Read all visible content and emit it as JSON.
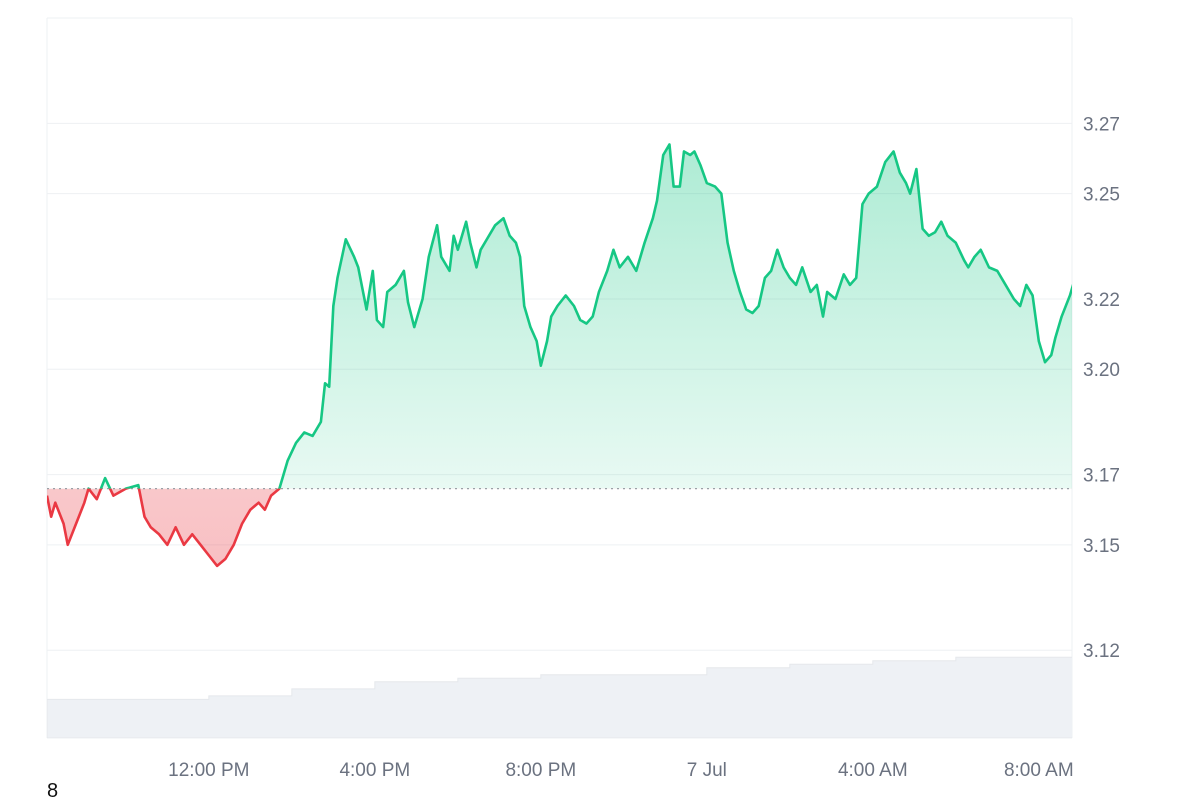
{
  "chart_data": {
    "type": "line",
    "baseline": 3.166,
    "ylim": [
      3.095,
      3.3
    ],
    "y_ticks": [
      3.12,
      3.15,
      3.17,
      3.2,
      3.22,
      3.25,
      3.27
    ],
    "y_tick_labels": [
      "3.12",
      "3.15",
      "3.17",
      "3.20",
      "3.22",
      "3.25",
      "3.27"
    ],
    "x_ticks": [
      {
        "label": "12:00 PM",
        "hours": 12
      },
      {
        "label": "4:00 PM",
        "hours": 16
      },
      {
        "label": "8:00 PM",
        "hours": 20
      },
      {
        "label": "7 Jul",
        "hours": 24
      },
      {
        "label": "4:00 AM",
        "hours": 28
      },
      {
        "label": "8:00 AM",
        "hours": 32
      }
    ],
    "x_range_hours": [
      8.1,
      32.8
    ],
    "series": [
      {
        "points": [
          [
            8.1,
            3.164
          ],
          [
            8.2,
            3.158
          ],
          [
            8.3,
            3.162
          ],
          [
            8.5,
            3.156
          ],
          [
            8.6,
            3.15
          ],
          [
            8.8,
            3.156
          ],
          [
            9.0,
            3.162
          ],
          [
            9.1,
            3.166
          ],
          [
            9.3,
            3.163
          ],
          [
            9.5,
            3.169
          ],
          [
            9.7,
            3.164
          ],
          [
            10.0,
            3.166
          ],
          [
            10.3,
            3.167
          ],
          [
            10.45,
            3.158
          ],
          [
            10.6,
            3.155
          ],
          [
            10.8,
            3.153
          ],
          [
            11.0,
            3.15
          ],
          [
            11.2,
            3.155
          ],
          [
            11.4,
            3.15
          ],
          [
            11.6,
            3.153
          ],
          [
            11.8,
            3.15
          ],
          [
            12.0,
            3.147
          ],
          [
            12.2,
            3.144
          ],
          [
            12.4,
            3.146
          ],
          [
            12.6,
            3.15
          ],
          [
            12.8,
            3.156
          ],
          [
            13.0,
            3.16
          ],
          [
            13.2,
            3.162
          ],
          [
            13.35,
            3.16
          ],
          [
            13.5,
            3.164
          ],
          [
            13.7,
            3.166
          ],
          [
            13.9,
            3.174
          ],
          [
            14.1,
            3.179
          ],
          [
            14.3,
            3.182
          ],
          [
            14.5,
            3.181
          ],
          [
            14.7,
            3.185
          ],
          [
            14.8,
            3.196
          ],
          [
            14.9,
            3.195
          ],
          [
            15.0,
            3.218
          ],
          [
            15.1,
            3.226
          ],
          [
            15.3,
            3.237
          ],
          [
            15.5,
            3.232
          ],
          [
            15.6,
            3.229
          ],
          [
            15.7,
            3.223
          ],
          [
            15.8,
            3.217
          ],
          [
            15.95,
            3.228
          ],
          [
            16.05,
            3.214
          ],
          [
            16.2,
            3.212
          ],
          [
            16.3,
            3.222
          ],
          [
            16.5,
            3.224
          ],
          [
            16.7,
            3.228
          ],
          [
            16.8,
            3.219
          ],
          [
            16.95,
            3.212
          ],
          [
            17.15,
            3.22
          ],
          [
            17.3,
            3.232
          ],
          [
            17.5,
            3.241
          ],
          [
            17.6,
            3.232
          ],
          [
            17.8,
            3.228
          ],
          [
            17.9,
            3.238
          ],
          [
            18.0,
            3.234
          ],
          [
            18.2,
            3.242
          ],
          [
            18.3,
            3.236
          ],
          [
            18.45,
            3.229
          ],
          [
            18.55,
            3.234
          ],
          [
            18.7,
            3.237
          ],
          [
            18.9,
            3.241
          ],
          [
            19.1,
            3.243
          ],
          [
            19.25,
            3.238
          ],
          [
            19.4,
            3.236
          ],
          [
            19.5,
            3.232
          ],
          [
            19.6,
            3.218
          ],
          [
            19.75,
            3.212
          ],
          [
            19.9,
            3.208
          ],
          [
            20.0,
            3.201
          ],
          [
            20.15,
            3.208
          ],
          [
            20.25,
            3.215
          ],
          [
            20.4,
            3.218
          ],
          [
            20.6,
            3.221
          ],
          [
            20.8,
            3.218
          ],
          [
            20.95,
            3.214
          ],
          [
            21.1,
            3.213
          ],
          [
            21.25,
            3.215
          ],
          [
            21.4,
            3.222
          ],
          [
            21.6,
            3.228
          ],
          [
            21.75,
            3.234
          ],
          [
            21.9,
            3.229
          ],
          [
            22.1,
            3.232
          ],
          [
            22.3,
            3.228
          ],
          [
            22.5,
            3.236
          ],
          [
            22.7,
            3.243
          ],
          [
            22.8,
            3.248
          ],
          [
            22.95,
            3.261
          ],
          [
            23.1,
            3.264
          ],
          [
            23.2,
            3.252
          ],
          [
            23.35,
            3.252
          ],
          [
            23.45,
            3.262
          ],
          [
            23.6,
            3.261
          ],
          [
            23.7,
            3.262
          ],
          [
            23.85,
            3.258
          ],
          [
            24.0,
            3.253
          ],
          [
            24.2,
            3.252
          ],
          [
            24.35,
            3.25
          ],
          [
            24.5,
            3.236
          ],
          [
            24.65,
            3.228
          ],
          [
            24.8,
            3.222
          ],
          [
            24.95,
            3.217
          ],
          [
            25.1,
            3.216
          ],
          [
            25.25,
            3.218
          ],
          [
            25.4,
            3.226
          ],
          [
            25.55,
            3.228
          ],
          [
            25.7,
            3.234
          ],
          [
            25.85,
            3.229
          ],
          [
            26.0,
            3.226
          ],
          [
            26.15,
            3.224
          ],
          [
            26.3,
            3.229
          ],
          [
            26.5,
            3.222
          ],
          [
            26.65,
            3.224
          ],
          [
            26.8,
            3.215
          ],
          [
            26.9,
            3.222
          ],
          [
            27.1,
            3.22
          ],
          [
            27.3,
            3.227
          ],
          [
            27.45,
            3.224
          ],
          [
            27.6,
            3.226
          ],
          [
            27.75,
            3.247
          ],
          [
            27.9,
            3.25
          ],
          [
            28.1,
            3.252
          ],
          [
            28.3,
            3.259
          ],
          [
            28.5,
            3.262
          ],
          [
            28.65,
            3.256
          ],
          [
            28.8,
            3.253
          ],
          [
            28.9,
            3.25
          ],
          [
            29.05,
            3.257
          ],
          [
            29.2,
            3.24
          ],
          [
            29.35,
            3.238
          ],
          [
            29.5,
            3.239
          ],
          [
            29.65,
            3.242
          ],
          [
            29.8,
            3.238
          ],
          [
            30.0,
            3.236
          ],
          [
            30.2,
            3.231
          ],
          [
            30.3,
            3.229
          ],
          [
            30.45,
            3.232
          ],
          [
            30.6,
            3.234
          ],
          [
            30.8,
            3.229
          ],
          [
            31.0,
            3.228
          ],
          [
            31.2,
            3.224
          ],
          [
            31.4,
            3.22
          ],
          [
            31.55,
            3.218
          ],
          [
            31.7,
            3.224
          ],
          [
            31.85,
            3.221
          ],
          [
            32.0,
            3.208
          ],
          [
            32.15,
            3.202
          ],
          [
            32.3,
            3.204
          ],
          [
            32.4,
            3.209
          ],
          [
            32.55,
            3.215
          ],
          [
            32.75,
            3.221
          ],
          [
            32.9,
            3.227
          ],
          [
            33.1,
            3.232
          ],
          [
            33.25,
            3.23
          ],
          [
            33.4,
            3.233
          ],
          [
            33.5,
            3.237
          ]
        ]
      }
    ],
    "volume": [
      [
        8.1,
        3.106
      ],
      [
        10.5,
        3.106
      ],
      [
        12.0,
        3.107
      ],
      [
        14.0,
        3.109
      ],
      [
        16.0,
        3.111
      ],
      [
        18.0,
        3.112
      ],
      [
        20.0,
        3.113
      ],
      [
        22.0,
        3.113
      ],
      [
        24.0,
        3.115
      ],
      [
        26.0,
        3.116
      ],
      [
        28.0,
        3.117
      ],
      [
        30.0,
        3.118
      ],
      [
        33.5,
        3.118
      ]
    ],
    "colors": {
      "up_line": "#16c784",
      "down_line": "#ea3943",
      "up_fill": "#16c784",
      "down_fill": "#ea3943",
      "grid": "#eef0f3",
      "baseline": "#9aa0a6",
      "volume_fill": "#eef1f5",
      "volume_stroke": "#e5e8ec"
    },
    "grid": true
  },
  "extra_label": "8"
}
